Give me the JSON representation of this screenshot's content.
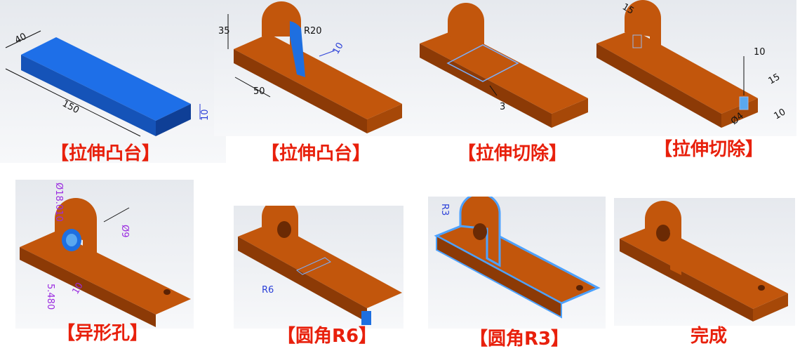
{
  "steps": [
    {
      "caption": "【拉伸凸台】",
      "dims": [
        "40",
        "150",
        "10"
      ]
    },
    {
      "caption": "【拉伸凸台】",
      "dims": [
        "35",
        "R20",
        "10",
        "50"
      ]
    },
    {
      "caption": "【拉伸切除】",
      "dims": [
        "3"
      ]
    },
    {
      "caption": "【拉伸切除】",
      "dims": [
        "15",
        "10",
        "15",
        "10",
        "Ø4"
      ]
    },
    {
      "caption": "【异形孔】",
      "dims": [
        "Ø18.010",
        "Ø9",
        "5.480",
        "10"
      ]
    },
    {
      "caption": "【圆角R6】",
      "dims": [
        "R6"
      ]
    },
    {
      "caption": "【圆角R3】",
      "dims": [
        "R3"
      ]
    },
    {
      "caption": "完成",
      "dims": []
    }
  ],
  "colors": {
    "part": "#c2560c",
    "part_dark": "#8c3a06",
    "part_light": "#d8681a",
    "selection": "#1e6fe0",
    "caption": "#e8200c"
  }
}
